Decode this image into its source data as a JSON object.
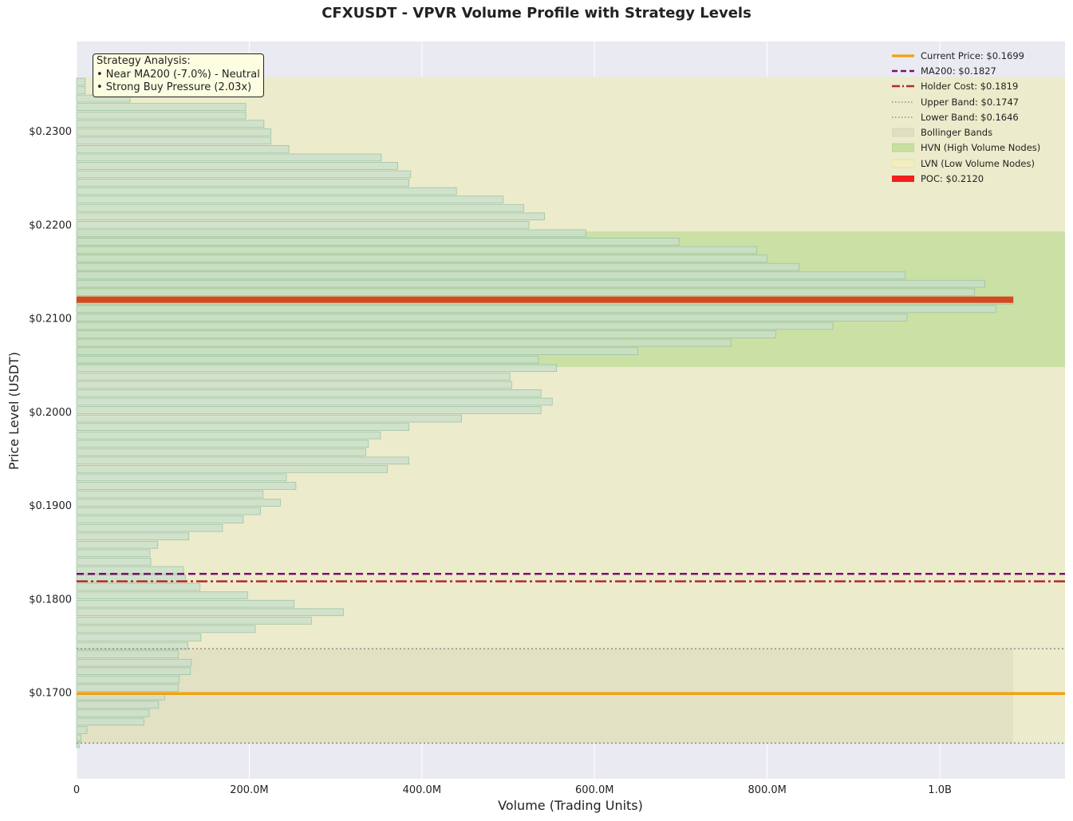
{
  "chart_data": {
    "type": "bar",
    "orientation": "horizontal",
    "title": "CFXUSDT - VPVR Volume Profile with Strategy Levels",
    "xlabel": "Volume (Trading Units)",
    "ylabel": "Price Level (USDT)",
    "xlim": [
      0,
      1145000000
    ],
    "ylim": [
      0.1608,
      0.2396
    ],
    "x_ticks": [
      {
        "value": 0,
        "label": "0"
      },
      {
        "value": 200000000,
        "label": "200.0M"
      },
      {
        "value": 400000000,
        "label": "400.0M"
      },
      {
        "value": 600000000,
        "label": "600.0M"
      },
      {
        "value": 800000000,
        "label": "800.0M"
      },
      {
        "value": 1000000000,
        "label": "1.0B"
      }
    ],
    "y_ticks": [
      {
        "value": 0.23,
        "label": "$0.2300"
      },
      {
        "value": 0.22,
        "label": "$0.2200"
      },
      {
        "value": 0.21,
        "label": "$0.2100"
      },
      {
        "value": 0.2,
        "label": "$0.2000"
      },
      {
        "value": 0.19,
        "label": "$0.1900"
      },
      {
        "value": 0.18,
        "label": "$0.1800"
      },
      {
        "value": 0.17,
        "label": "$0.1700"
      }
    ],
    "bin_height": 0.00075,
    "bins": {
      "price": [
        0.2353,
        0.2344,
        0.2335,
        0.2326,
        0.2317,
        0.2308,
        0.2299,
        0.229,
        0.2281,
        0.2272,
        0.2263,
        0.2254,
        0.2245,
        0.2236,
        0.2227,
        0.2218,
        0.2209,
        0.22,
        0.2191,
        0.2182,
        0.2173,
        0.2164,
        0.2155,
        0.2146,
        0.2137,
        0.2128,
        0.2119,
        0.211,
        0.2101,
        0.2092,
        0.2083,
        0.2074,
        0.2065,
        0.2056,
        0.2047,
        0.2038,
        0.2029,
        0.202,
        0.2011,
        0.2002,
        0.1993,
        0.1984,
        0.1975,
        0.1966,
        0.1957,
        0.1948,
        0.1939,
        0.193,
        0.1921,
        0.1912,
        0.1903,
        0.1894,
        0.1885,
        0.1876,
        0.1867,
        0.1858,
        0.1849,
        0.184,
        0.1831,
        0.1822,
        0.1813,
        0.1804,
        0.1795,
        0.1786,
        0.1777,
        0.1768,
        0.1759,
        0.175,
        0.1741,
        0.1732,
        0.1723,
        0.1714,
        0.1705,
        0.1696,
        0.1687,
        0.1678,
        0.1669,
        0.166,
        0.1651,
        0.1645
      ],
      "volume": [
        10000000,
        10000000,
        62000000,
        196000000,
        196000000,
        217000000,
        225000000,
        225000000,
        246000000,
        353000000,
        372000000,
        387000000,
        385000000,
        440000000,
        494000000,
        518000000,
        542000000,
        524000000,
        590000000,
        698000000,
        788000000,
        800000000,
        837000000,
        960000000,
        1052000000,
        1040000000,
        1085000000,
        1065000000,
        962000000,
        876000000,
        810000000,
        758000000,
        650000000,
        535000000,
        556000000,
        502000000,
        504000000,
        538000000,
        551000000,
        538000000,
        446000000,
        385000000,
        352000000,
        338000000,
        335000000,
        385000000,
        360000000,
        243000000,
        254000000,
        216000000,
        236000000,
        213000000,
        193000000,
        169000000,
        130000000,
        94000000,
        85000000,
        86000000,
        124000000,
        126000000,
        143000000,
        198000000,
        252000000,
        309000000,
        272000000,
        207000000,
        144000000,
        129000000,
        118000000,
        133000000,
        132000000,
        119000000,
        118000000,
        102000000,
        95000000,
        84000000,
        78000000,
        12000000,
        5000000,
        3000000
      ]
    },
    "poc": {
      "price": 0.212,
      "volume": 1085000000,
      "label": "POC: $0.2120"
    },
    "hvn_zone": [
      0.2048,
      0.2193
    ],
    "lvn_zone": [
      0.1646,
      0.2358
    ],
    "bollinger_zone": [
      0.1646,
      0.1747
    ],
    "lines": [
      {
        "name": "current_price",
        "value": 0.1699,
        "label": "Current Price: $0.1699"
      },
      {
        "name": "ma200",
        "value": 0.1827,
        "label": "MA200: $0.1827"
      },
      {
        "name": "holder_cost",
        "value": 0.1819,
        "label": "Holder Cost: $0.1819"
      },
      {
        "name": "upper_band",
        "value": 0.1747,
        "label": "Upper Band: $0.1747"
      },
      {
        "name": "lower_band",
        "value": 0.1646,
        "label": "Lower Band: $0.1646"
      }
    ],
    "legend": {
      "placement": "top-right",
      "entries": [
        {
          "key": "current_price",
          "label": "Current Price: $0.1699"
        },
        {
          "key": "ma200",
          "label": "MA200: $0.1827"
        },
        {
          "key": "holder_cost",
          "label": "Holder Cost: $0.1819"
        },
        {
          "key": "upper_band",
          "label": "Upper Band: $0.1747"
        },
        {
          "key": "lower_band",
          "label": "Lower Band: $0.1646"
        },
        {
          "key": "bollinger",
          "label": "Bollinger Bands"
        },
        {
          "key": "hvn",
          "label": "HVN (High Volume Nodes)"
        },
        {
          "key": "lvn",
          "label": "LVN (Low Volume Nodes)"
        },
        {
          "key": "poc",
          "label": "POC: $0.2120"
        }
      ]
    },
    "annotation": {
      "lines": [
        "Strategy Analysis:",
        "• Near MA200 (-7.0%) - Neutral",
        "• Strong Buy Pressure (2.03x)"
      ]
    },
    "grid": true
  },
  "colors": {
    "background": "#eaeaf2",
    "bar_fill": "#c8dfcc",
    "bar_stroke": "#9cc3a4",
    "hvn": "#c8dfa0",
    "lvn": "#ecebcb",
    "bollinger": "#e0dfc2",
    "poc": "#d24a1f",
    "poc_legend": "#f21f1f",
    "current_price": "#f5a00c",
    "ma200": "#7b0f6e",
    "holder_cost": "#b22a2a",
    "band": "#909090"
  }
}
